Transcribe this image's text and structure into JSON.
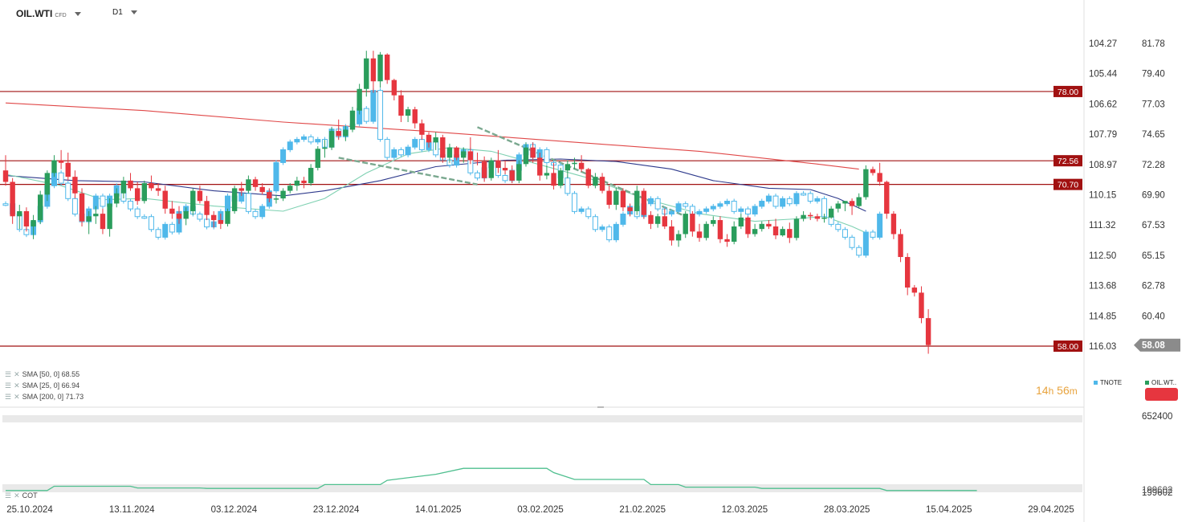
{
  "header": {
    "symbol": "OIL.WTI",
    "symbol_suffix": "CFD",
    "timeframe": "D1"
  },
  "indicators": [
    {
      "label": "SMA [50, 0] 68.55",
      "color": "#2e3a8c"
    },
    {
      "label": "SMA [25, 0] 66.94",
      "color": "#7fd1b2"
    },
    {
      "label": "SMA [200, 0] 71.73",
      "color": "#e04848"
    }
  ],
  "timer": {
    "hours": "14",
    "h": "h",
    "minutes": "56",
    "m": "m"
  },
  "compare_legend": {
    "a": "TNOTE",
    "a_color": "#4fb8ea",
    "b": "OIL.WT..",
    "b_color": "#2a9d5c"
  },
  "colors": {
    "up": "#2a9d5c",
    "down": "#e6363f",
    "compare": "#4fb8ea",
    "hline": "#a11111",
    "channel": "#7aa88f",
    "cot": "#4fbf8f"
  },
  "lower_panel": {
    "label": "COT",
    "axis_top": "652400",
    "axis_bottom": "199602"
  },
  "chart_data": {
    "type": "candlestick",
    "symbol": "OIL.WTI",
    "timeframe": "D1",
    "ylim": [
      56.5,
      83.5
    ],
    "x_ticks": [
      "25.10.2024",
      "13.11.2024",
      "03.12.2024",
      "23.12.2024",
      "14.01.2025",
      "03.02.2025",
      "21.02.2025",
      "12.03.2025",
      "28.03.2025",
      "15.04.2025",
      "29.04.2025"
    ],
    "y_ticks_right": [
      "81.78",
      "79.40",
      "77.03",
      "74.65",
      "72.28",
      "69.90",
      "67.53",
      "65.15",
      "62.78",
      "60.40"
    ],
    "y_ticks_left": [
      "104.27",
      "105.44",
      "106.62",
      "107.79",
      "108.97",
      "110.15",
      "111.32",
      "112.50",
      "113.68",
      "114.85",
      "116.03"
    ],
    "last_price": "58.08",
    "horizontal_levels": [
      {
        "value": 78.0,
        "label": "78.00"
      },
      {
        "value": 72.56,
        "label": "72.56"
      },
      {
        "value": 70.7,
        "label": "70.70"
      },
      {
        "value": 58.0,
        "label": "58.00"
      }
    ],
    "channel": {
      "upper": [
        [
          68,
          75.2
        ],
        [
          98,
          68.2
        ]
      ],
      "lower": [
        [
          48,
          72.8
        ],
        [
          68,
          70.7
        ]
      ]
    },
    "candles": [
      [
        71.8,
        73.0,
        70.6,
        70.9
      ],
      [
        70.9,
        71.2,
        67.6,
        68.2
      ],
      [
        68.2,
        69.1,
        67.2,
        68.6
      ],
      [
        68.6,
        68.9,
        67.0,
        67.4
      ],
      [
        67.4,
        68.3,
        66.4,
        67.9
      ],
      [
        67.9,
        70.2,
        67.6,
        69.9
      ],
      [
        69.9,
        71.8,
        69.4,
        71.6
      ],
      [
        71.6,
        73.0,
        71.3,
        72.6
      ],
      [
        72.6,
        73.4,
        71.9,
        72.4
      ],
      [
        72.4,
        73.2,
        71.0,
        71.3
      ],
      [
        71.3,
        71.8,
        69.6,
        70.0
      ],
      [
        70.0,
        70.4,
        67.4,
        67.8
      ],
      [
        67.8,
        68.6,
        66.8,
        68.2
      ],
      [
        68.2,
        69.0,
        67.6,
        68.4
      ],
      [
        68.4,
        68.8,
        66.8,
        67.2
      ],
      [
        67.2,
        69.6,
        66.6,
        69.2
      ],
      [
        69.2,
        70.4,
        68.9,
        70.0
      ],
      [
        70.0,
        71.3,
        69.6,
        71.0
      ],
      [
        71.0,
        71.6,
        70.2,
        70.4
      ],
      [
        70.4,
        70.9,
        69.1,
        69.4
      ],
      [
        69.4,
        71.0,
        69.2,
        70.8
      ],
      [
        70.8,
        71.4,
        70.2,
        70.4
      ],
      [
        70.4,
        70.8,
        69.8,
        70.2
      ],
      [
        70.2,
        70.6,
        68.4,
        68.8
      ],
      [
        68.8,
        69.4,
        68.0,
        68.4
      ],
      [
        68.4,
        69.0,
        67.6,
        68.0
      ],
      [
        68.0,
        68.9,
        67.5,
        68.6
      ],
      [
        68.6,
        70.4,
        68.3,
        70.2
      ],
      [
        70.2,
        70.6,
        69.2,
        69.4
      ],
      [
        69.4,
        69.8,
        67.9,
        68.3
      ],
      [
        68.3,
        68.6,
        67.3,
        67.9
      ],
      [
        67.9,
        68.4,
        67.2,
        67.6
      ],
      [
        67.6,
        68.8,
        67.4,
        68.6
      ],
      [
        68.6,
        70.6,
        68.4,
        70.4
      ],
      [
        70.4,
        70.9,
        69.8,
        70.2
      ],
      [
        70.2,
        71.4,
        70.0,
        71.1
      ],
      [
        71.1,
        71.3,
        70.2,
        70.5
      ],
      [
        70.5,
        70.8,
        69.9,
        70.1
      ],
      [
        70.1,
        70.4,
        69.3,
        69.6
      ],
      [
        69.6,
        69.9,
        69.2,
        69.6
      ],
      [
        69.6,
        70.4,
        69.4,
        70.2
      ],
      [
        70.2,
        70.8,
        70.0,
        70.6
      ],
      [
        70.6,
        71.3,
        70.2,
        71.0
      ],
      [
        71.0,
        71.3,
        70.4,
        70.8
      ],
      [
        70.8,
        72.3,
        70.6,
        72.0
      ],
      [
        72.0,
        73.7,
        71.8,
        73.5
      ],
      [
        73.5,
        74.2,
        72.8,
        73.6
      ],
      [
        73.6,
        75.2,
        73.4,
        74.9
      ],
      [
        74.9,
        75.8,
        74.2,
        74.5
      ],
      [
        74.5,
        75.3,
        74.1,
        75.0
      ],
      [
        75.0,
        76.8,
        74.8,
        76.5
      ],
      [
        76.5,
        78.6,
        76.2,
        78.2
      ],
      [
        78.2,
        81.2,
        77.6,
        80.6
      ],
      [
        80.6,
        81.2,
        77.9,
        78.8
      ],
      [
        78.8,
        81.1,
        78.3,
        80.9
      ],
      [
        80.9,
        81.0,
        78.6,
        78.9
      ],
      [
        78.9,
        79.0,
        77.3,
        77.7
      ],
      [
        77.7,
        78.1,
        75.6,
        76.1
      ],
      [
        76.1,
        76.8,
        75.6,
        76.6
      ],
      [
        76.6,
        76.8,
        75.1,
        75.5
      ],
      [
        75.5,
        75.8,
        74.2,
        74.6
      ],
      [
        74.6,
        74.8,
        73.6,
        74.0
      ],
      [
        74.0,
        74.8,
        73.4,
        74.4
      ],
      [
        74.4,
        74.6,
        72.4,
        72.8
      ],
      [
        72.8,
        73.9,
        72.4,
        73.6
      ],
      [
        73.6,
        73.7,
        72.6,
        72.8
      ],
      [
        72.8,
        73.6,
        72.4,
        73.3
      ],
      [
        73.3,
        74.4,
        72.3,
        72.6
      ],
      [
        72.6,
        73.2,
        72.2,
        72.5
      ],
      [
        72.5,
        72.9,
        70.9,
        71.2
      ],
      [
        71.2,
        72.8,
        71.0,
        72.6
      ],
      [
        72.6,
        73.4,
        71.6,
        72.0
      ],
      [
        72.0,
        72.6,
        71.5,
        71.8
      ],
      [
        71.8,
        72.2,
        70.8,
        71.0
      ],
      [
        71.0,
        72.6,
        70.8,
        72.3
      ],
      [
        72.3,
        74.0,
        72.1,
        73.6
      ],
      [
        73.6,
        74.0,
        72.4,
        72.8
      ],
      [
        72.8,
        73.2,
        71.0,
        71.4
      ],
      [
        71.4,
        72.2,
        71.1,
        71.6
      ],
      [
        71.6,
        72.4,
        70.3,
        70.6
      ],
      [
        70.6,
        72.0,
        70.4,
        71.8
      ],
      [
        71.8,
        72.6,
        71.2,
        72.3
      ],
      [
        72.3,
        72.8,
        71.9,
        72.4
      ],
      [
        72.4,
        73.0,
        71.7,
        71.9
      ],
      [
        71.9,
        72.0,
        70.4,
        70.6
      ],
      [
        70.6,
        71.6,
        70.4,
        71.3
      ],
      [
        71.3,
        71.6,
        70.0,
        70.2
      ],
      [
        70.2,
        70.6,
        68.8,
        69.1
      ],
      [
        69.1,
        70.5,
        68.7,
        70.2
      ],
      [
        70.2,
        70.4,
        68.6,
        68.9
      ],
      [
        68.9,
        69.2,
        68.2,
        68.6
      ],
      [
        68.6,
        70.6,
        68.3,
        70.2
      ],
      [
        70.2,
        70.4,
        68.0,
        68.3
      ],
      [
        68.3,
        68.6,
        67.2,
        67.6
      ],
      [
        67.6,
        68.4,
        67.3,
        68.2
      ],
      [
        68.2,
        68.8,
        67.2,
        67.4
      ],
      [
        67.4,
        67.9,
        65.9,
        66.3
      ],
      [
        66.3,
        67.1,
        65.8,
        66.8
      ],
      [
        66.8,
        68.6,
        66.5,
        68.4
      ],
      [
        68.4,
        68.6,
        66.6,
        67.0
      ],
      [
        67.0,
        67.6,
        66.2,
        66.5
      ],
      [
        66.5,
        67.8,
        66.3,
        67.6
      ],
      [
        67.6,
        68.2,
        67.4,
        67.9
      ],
      [
        67.9,
        68.2,
        66.1,
        66.4
      ],
      [
        66.4,
        66.8,
        65.8,
        66.2
      ],
      [
        66.2,
        67.8,
        66.0,
        67.4
      ],
      [
        67.4,
        68.4,
        67.2,
        68.1
      ],
      [
        68.1,
        68.2,
        66.5,
        66.8
      ],
      [
        66.8,
        67.6,
        66.6,
        67.2
      ],
      [
        67.2,
        67.8,
        67.0,
        67.6
      ],
      [
        67.6,
        67.9,
        67.2,
        67.4
      ],
      [
        67.4,
        68.0,
        66.4,
        66.7
      ],
      [
        66.7,
        67.4,
        66.6,
        67.2
      ],
      [
        67.2,
        67.7,
        66.1,
        66.5
      ],
      [
        66.5,
        68.2,
        66.3,
        68.0
      ],
      [
        68.0,
        68.6,
        67.8,
        68.3
      ],
      [
        68.3,
        68.5,
        67.9,
        68.2
      ],
      [
        68.2,
        68.4,
        67.8,
        68.0
      ],
      [
        68.0,
        68.4,
        67.7,
        68.1
      ],
      [
        68.1,
        69.0,
        68.0,
        68.8
      ],
      [
        68.8,
        69.4,
        68.5,
        69.2
      ],
      [
        69.2,
        69.4,
        68.6,
        69.4
      ],
      [
        69.4,
        69.6,
        68.3,
        69.0
      ],
      [
        69.0,
        70.0,
        68.8,
        69.7
      ],
      [
        69.7,
        72.2,
        69.5,
        71.9
      ],
      [
        71.9,
        72.1,
        71.4,
        71.6
      ],
      [
        71.6,
        72.4,
        70.6,
        70.9
      ],
      [
        70.9,
        71.0,
        68.0,
        68.4
      ],
      [
        68.4,
        68.6,
        66.4,
        66.8
      ],
      [
        66.8,
        67.2,
        64.6,
        65.0
      ],
      [
        65.0,
        65.3,
        62.0,
        62.6
      ],
      [
        62.6,
        62.8,
        61.9,
        62.2
      ],
      [
        62.2,
        62.7,
        59.8,
        60.2
      ],
      [
        60.2,
        60.9,
        57.4,
        58.08
      ]
    ],
    "sma_200": [
      [
        0,
        77.1
      ],
      [
        20,
        76.5
      ],
      [
        40,
        75.6
      ],
      [
        60,
        74.9
      ],
      [
        80,
        74.1
      ],
      [
        100,
        73.3
      ],
      [
        117,
        72.3
      ],
      [
        123,
        71.9
      ]
    ],
    "sma_50": [
      [
        0,
        71.4
      ],
      [
        10,
        71.0
      ],
      [
        20,
        70.9
      ],
      [
        30,
        70.2
      ],
      [
        40,
        69.8
      ],
      [
        46,
        70.2
      ],
      [
        54,
        71.0
      ],
      [
        62,
        72.1
      ],
      [
        72,
        72.6
      ],
      [
        80,
        72.7
      ],
      [
        88,
        72.5
      ],
      [
        96,
        71.9
      ],
      [
        102,
        71.0
      ],
      [
        110,
        70.4
      ],
      [
        116,
        70.3
      ],
      [
        120,
        69.6
      ],
      [
        124,
        68.6
      ]
    ],
    "sma_25": [
      [
        0,
        71.5
      ],
      [
        8,
        70.6
      ],
      [
        14,
        69.5
      ],
      [
        20,
        69.6
      ],
      [
        30,
        69.0
      ],
      [
        40,
        68.6
      ],
      [
        46,
        69.6
      ],
      [
        52,
        71.6
      ],
      [
        58,
        73.1
      ],
      [
        64,
        73.6
      ],
      [
        70,
        73.3
      ],
      [
        76,
        72.4
      ],
      [
        84,
        71.2
      ],
      [
        92,
        69.6
      ],
      [
        100,
        68.4
      ],
      [
        108,
        67.8
      ],
      [
        114,
        68.0
      ],
      [
        118,
        68.2
      ],
      [
        122,
        67.4
      ],
      [
        124,
        66.9
      ]
    ],
    "compare_series": {
      "name": "TNOTE",
      "ylim": [
        116.6,
        103.7
      ],
      "values": [
        110.5,
        110.9,
        111.5,
        111.7,
        111.2,
        110.6,
        109.8,
        109.3,
        109.7,
        110.3,
        110.9,
        111.2,
        110.7,
        110.2,
        110.6,
        110.2,
        109.8,
        110.4,
        110.7,
        111.0,
        111.0,
        111.5,
        111.8,
        111.3,
        111.6,
        110.8,
        110.6,
        110.9,
        111.1,
        111.4,
        111.2,
        110.8,
        110.2,
        110.4,
        110.1,
        110.8,
        111.0,
        110.6,
        110.0,
        108.9,
        108.4,
        108.1,
        108.0,
        107.9,
        108.1,
        108.0,
        108.3,
        107.6,
        107.9,
        107.5,
        107.4,
        106.8,
        107.3,
        106.1,
        108.0,
        108.7,
        108.4,
        108.6,
        108.3,
        108.0,
        108.4,
        108.1,
        108.6,
        108.8,
        109.0,
        108.6,
        108.4,
        109.3,
        109.5,
        109.1,
        108.9,
        109.4,
        109.6,
        109.2,
        108.6,
        108.2,
        108.7,
        108.4,
        108.9,
        109.0,
        109.5,
        110.1,
        110.8,
        110.7,
        111.0,
        111.5,
        111.4,
        111.9,
        111.3,
        110.9,
        110.6,
        111.0,
        110.5,
        110.3,
        110.7,
        110.9,
        110.8,
        110.5,
        110.6,
        110.9,
        110.8,
        110.7,
        110.6,
        110.5,
        110.4,
        110.8,
        110.7,
        110.9,
        110.6,
        110.4,
        110.2,
        110.6,
        110.3,
        110.5,
        110.1,
        110.1,
        110.4,
        110.3,
        111.0,
        111.3,
        111.5,
        111.8,
        112.2,
        112.5,
        111.6,
        111.8,
        110.9
      ]
    },
    "cot": {
      "values": [
        [
          0,
          0.3
        ],
        [
          6,
          0.3
        ],
        [
          7,
          0.8
        ],
        [
          18,
          0.8
        ],
        [
          19,
          0.6
        ],
        [
          28,
          0.6
        ],
        [
          29,
          0.55
        ],
        [
          45,
          0.55
        ],
        [
          46,
          1.0
        ],
        [
          54,
          1.0
        ],
        [
          55,
          1.5
        ],
        [
          62,
          2.2
        ],
        [
          66,
          2.9
        ],
        [
          78,
          2.9
        ],
        [
          79,
          2.4
        ],
        [
          82,
          1.6
        ],
        [
          92,
          1.6
        ],
        [
          93,
          1.0
        ],
        [
          97,
          1.0
        ],
        [
          98,
          0.7
        ],
        [
          108,
          0.7
        ],
        [
          109,
          0.55
        ],
        [
          126,
          0.55
        ],
        [
          127,
          0.3
        ],
        [
          140,
          0.3
        ]
      ],
      "ylim": [
        0,
        3.2
      ]
    }
  }
}
